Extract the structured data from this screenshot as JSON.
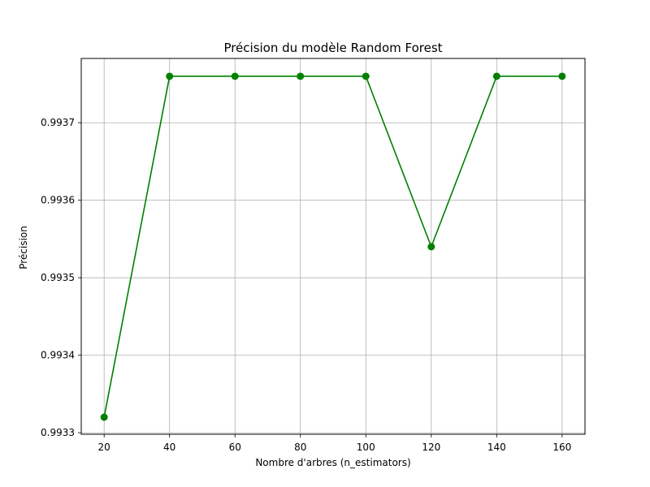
{
  "chart_data": {
    "type": "line",
    "title": "Précision du modèle Random Forest",
    "xlabel": "Nombre d'arbres (n_estimators)",
    "ylabel": "Précision",
    "x": [
      20,
      40,
      60,
      80,
      100,
      120,
      140,
      160
    ],
    "series": [
      {
        "values": [
          0.99332,
          0.99376,
          0.99376,
          0.99376,
          0.99376,
          0.99354,
          0.99376,
          0.99376
        ],
        "color": "#008000",
        "marker": "circle"
      }
    ],
    "xlim": [
      13,
      167
    ],
    "ylim": [
      0.993298,
      0.993783
    ],
    "x_ticks": [
      20,
      40,
      60,
      80,
      100,
      120,
      140,
      160
    ],
    "x_tick_labels": [
      "20",
      "40",
      "60",
      "80",
      "100",
      "120",
      "140",
      "160"
    ],
    "y_ticks": [
      0.9933,
      0.9934,
      0.9935,
      0.9936,
      0.9937
    ],
    "y_tick_labels": [
      "0.9933",
      "0.9934",
      "0.9935",
      "0.9936",
      "0.9937"
    ],
    "grid": true,
    "grid_color": "#b0b0b0",
    "axes_color": "#000000"
  }
}
